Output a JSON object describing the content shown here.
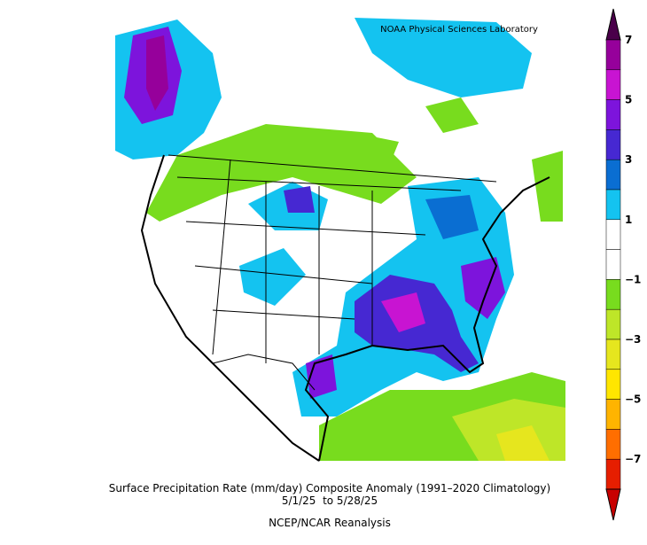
{
  "credit": "NOAA Physical Sciences Laboratory",
  "colorbar": {
    "labels": [
      "7",
      "5",
      "3",
      "1",
      "−1",
      "−3",
      "−5",
      "−7"
    ],
    "colors": [
      "#4a004a",
      "#96009b",
      "#c814d2",
      "#7d14dc",
      "#4628d2",
      "#0a6ed2",
      "#14c3f0",
      "#ffffff",
      "#ffffff",
      "#78dc1e",
      "#bee628",
      "#e6e61e",
      "#ffe600",
      "#ffb400",
      "#ff6e00",
      "#e61e00",
      "#c80000"
    ]
  },
  "caption": {
    "title": "Surface Precipitation Rate (mm/day) Composite Anomaly (1991–2020 Climatology)",
    "dates": "5/1/25  to 5/28/25",
    "source": "NCEP/NCAR Reanalysis"
  }
}
